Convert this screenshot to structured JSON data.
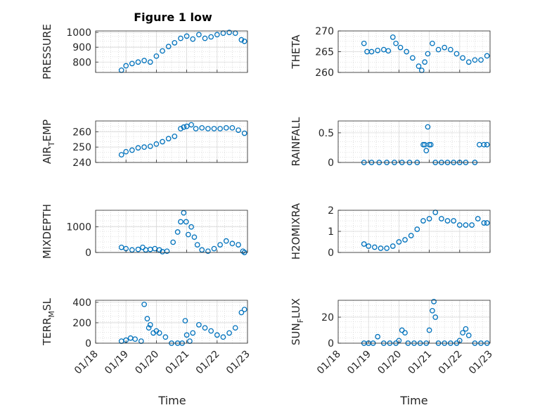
{
  "figure": {
    "title": "Figure 1 low",
    "marker_color": "#0072BD",
    "x_ticks": [
      "01/18",
      "01/19",
      "01/20",
      "01/21",
      "01/22",
      "01/23"
    ],
    "xlabel": "Time"
  },
  "chart_data": [
    {
      "type": "scatter",
      "ylabel_main": "PRESSURE",
      "ylabel_sub": "",
      "xlim": [
        18,
        23
      ],
      "ylim": [
        730,
        1010
      ],
      "yticks": [
        800,
        900,
        1000
      ],
      "ytick_labels": [
        "800",
        "900",
        "1000"
      ],
      "x": [
        18.85,
        19.0,
        19.2,
        19.4,
        19.6,
        19.8,
        20.0,
        20.2,
        20.4,
        20.6,
        20.8,
        21.0,
        21.2,
        21.4,
        21.6,
        21.8,
        22.0,
        22.2,
        22.4,
        22.6,
        22.8,
        22.9
      ],
      "y": [
        745,
        775,
        790,
        800,
        810,
        800,
        840,
        875,
        905,
        930,
        960,
        975,
        955,
        985,
        960,
        970,
        985,
        995,
        1000,
        995,
        950,
        940
      ]
    },
    {
      "type": "scatter",
      "ylabel_main": "THETA",
      "ylabel_sub": "",
      "xlim": [
        18,
        23
      ],
      "ylim": [
        260,
        270
      ],
      "yticks": [
        260,
        265,
        270
      ],
      "ytick_labels": [
        "260",
        "265",
        "270"
      ],
      "x": [
        18.85,
        18.95,
        19.1,
        19.3,
        19.5,
        19.65,
        19.8,
        19.9,
        20.05,
        20.25,
        20.45,
        20.65,
        20.75,
        20.85,
        20.95,
        21.1,
        21.3,
        21.5,
        21.7,
        21.9,
        22.1,
        22.3,
        22.5,
        22.7,
        22.9
      ],
      "y": [
        267,
        265,
        265,
        265.3,
        265.5,
        265.2,
        268.5,
        267,
        266,
        265,
        263.5,
        261.5,
        260.5,
        262.5,
        264.5,
        267,
        265.5,
        266,
        265.5,
        264.5,
        263.5,
        262.5,
        263,
        263,
        264
      ]
    },
    {
      "type": "scatter",
      "ylabel_main": "AIR",
      "ylabel_sub": "T",
      "ylabel_rest": "EMP",
      "xlim": [
        18,
        23
      ],
      "ylim": [
        240,
        267
      ],
      "yticks": [
        240,
        250,
        260
      ],
      "ytick_labels": [
        "240",
        "250",
        "260"
      ],
      "x": [
        18.85,
        19.0,
        19.2,
        19.4,
        19.6,
        19.8,
        20.0,
        20.2,
        20.4,
        20.6,
        20.8,
        20.9,
        21.0,
        21.15,
        21.3,
        21.5,
        21.7,
        21.9,
        22.1,
        22.3,
        22.5,
        22.7,
        22.9
      ],
      "y": [
        245,
        247,
        248,
        249.5,
        250,
        250.5,
        252,
        253.5,
        255.5,
        257,
        262,
        263,
        263.5,
        264.5,
        262,
        262.5,
        262,
        262,
        262,
        262.5,
        262.5,
        261,
        259
      ]
    },
    {
      "type": "scatter",
      "ylabel_main": "RAINFALL",
      "ylabel_sub": "",
      "xlim": [
        18,
        23
      ],
      "ylim": [
        0,
        0.7
      ],
      "yticks": [
        0,
        0.5
      ],
      "ytick_labels": [
        "0",
        "0.5"
      ],
      "x": [
        18.85,
        19.1,
        19.35,
        19.6,
        19.85,
        20.1,
        20.35,
        20.6,
        20.8,
        20.85,
        20.9,
        20.95,
        21.0,
        21.05,
        21.2,
        21.4,
        21.6,
        21.8,
        22.0,
        22.2,
        22.5,
        22.65,
        22.8,
        22.9
      ],
      "y": [
        0,
        0,
        0,
        0,
        0,
        0,
        0,
        0,
        0.3,
        0.3,
        0.2,
        0.6,
        0.3,
        0.3,
        0,
        0,
        0,
        0,
        0,
        0,
        0,
        0.3,
        0.3,
        0.3
      ]
    },
    {
      "type": "scatter",
      "ylabel_main": "MIXDEPTH",
      "ylabel_sub": "",
      "xlim": [
        18,
        23
      ],
      "ylim": [
        0,
        1650
      ],
      "yticks": [
        0,
        1000
      ],
      "ytick_labels": [
        "0",
        "1000"
      ],
      "x": [
        18.85,
        19.0,
        19.2,
        19.4,
        19.55,
        19.65,
        19.8,
        19.95,
        20.1,
        20.2,
        20.35,
        20.55,
        20.7,
        20.8,
        20.9,
        20.98,
        21.05,
        21.15,
        21.25,
        21.35,
        21.5,
        21.7,
        21.9,
        22.1,
        22.3,
        22.5,
        22.7,
        22.85,
        22.9
      ],
      "y": [
        200,
        150,
        100,
        120,
        200,
        100,
        120,
        150,
        100,
        30,
        50,
        400,
        800,
        1200,
        1550,
        1200,
        700,
        1000,
        600,
        300,
        100,
        50,
        150,
        300,
        450,
        350,
        300,
        50,
        0
      ]
    },
    {
      "type": "scatter",
      "ylabel_main": "H2OMIXRA",
      "ylabel_sub": "",
      "xlim": [
        18,
        23
      ],
      "ylim": [
        0,
        2
      ],
      "yticks": [
        0,
        1,
        2
      ],
      "ytick_labels": [
        "0",
        "1",
        "2"
      ],
      "x": [
        18.85,
        19.0,
        19.2,
        19.4,
        19.6,
        19.8,
        20.0,
        20.2,
        20.4,
        20.6,
        20.8,
        21.0,
        21.2,
        21.4,
        21.6,
        21.8,
        22.0,
        22.2,
        22.4,
        22.6,
        22.8,
        22.9
      ],
      "y": [
        0.4,
        0.3,
        0.25,
        0.2,
        0.2,
        0.3,
        0.5,
        0.6,
        0.8,
        1.1,
        1.5,
        1.6,
        1.9,
        1.6,
        1.5,
        1.5,
        1.3,
        1.3,
        1.3,
        1.6,
        1.4,
        1.4
      ]
    },
    {
      "type": "scatter",
      "ylabel_main": "TERR",
      "ylabel_sub": "M",
      "ylabel_rest": "SL",
      "xlim": [
        18,
        23
      ],
      "ylim": [
        0,
        420
      ],
      "yticks": [
        0,
        200,
        400
      ],
      "ytick_labels": [
        "0",
        "200",
        "400"
      ],
      "x": [
        18.85,
        19.0,
        19.15,
        19.3,
        19.5,
        19.6,
        19.7,
        19.75,
        19.8,
        19.9,
        20.0,
        20.1,
        20.3,
        20.5,
        20.7,
        20.85,
        20.95,
        21.0,
        21.1,
        21.2,
        21.4,
        21.6,
        21.8,
        22.0,
        22.2,
        22.4,
        22.6,
        22.8,
        22.9
      ],
      "y": [
        20,
        30,
        50,
        40,
        20,
        380,
        240,
        150,
        180,
        100,
        120,
        100,
        60,
        0,
        0,
        0,
        220,
        80,
        20,
        100,
        180,
        150,
        120,
        80,
        60,
        100,
        150,
        300,
        330
      ]
    },
    {
      "type": "scatter",
      "ylabel_main": "SUN",
      "ylabel_sub": "F",
      "ylabel_rest": "LUX",
      "xlim": [
        18,
        23
      ],
      "ylim": [
        0,
        33
      ],
      "yticks": [
        0,
        20
      ],
      "ytick_labels": [
        "0",
        "20"
      ],
      "x": [
        18.85,
        19.0,
        19.15,
        19.3,
        19.5,
        19.7,
        19.9,
        20.0,
        20.1,
        20.2,
        20.3,
        20.5,
        20.7,
        20.9,
        21.0,
        21.1,
        21.15,
        21.2,
        21.3,
        21.5,
        21.7,
        21.9,
        22.0,
        22.1,
        22.2,
        22.3,
        22.5,
        22.7,
        22.9
      ],
      "y": [
        0,
        0,
        0,
        5,
        0,
        0,
        0,
        2,
        10,
        8,
        0,
        0,
        0,
        0,
        10,
        25,
        32,
        20,
        0,
        0,
        0,
        0,
        2,
        8,
        11,
        6,
        0,
        0,
        0
      ]
    }
  ]
}
